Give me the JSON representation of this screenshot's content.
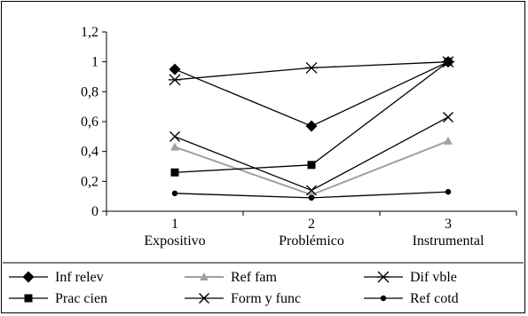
{
  "chart_data": {
    "type": "line",
    "title": "",
    "xlabel": "",
    "ylabel": "",
    "x": [
      "1",
      "2",
      "3"
    ],
    "categories": [
      "Expositivo",
      "Problémico",
      "Instrumental"
    ],
    "ylim": [
      0,
      1.2
    ],
    "yticks": [
      "0",
      "0,2",
      "0,4",
      "0,6",
      "0,8",
      "1",
      "1,2"
    ],
    "grid": false,
    "legend_position": "bottom",
    "series": [
      {
        "name": "Inf relev",
        "values": [
          0.95,
          0.57,
          1.0
        ],
        "marker": "diamond",
        "color": "#000000"
      },
      {
        "name": "Ref fam",
        "values": [
          0.43,
          0.11,
          0.47
        ],
        "marker": "triangle",
        "color": "#a0a0a0"
      },
      {
        "name": "Dif vble",
        "values": [
          0.88,
          0.96,
          1.0
        ],
        "marker": "asterisk",
        "color": "#000000"
      },
      {
        "name": "Prac cien",
        "values": [
          0.26,
          0.31,
          1.0
        ],
        "marker": "square",
        "color": "#000000"
      },
      {
        "name": "Form y func",
        "values": [
          0.5,
          0.14,
          0.63
        ],
        "marker": "x",
        "color": "#000000"
      },
      {
        "name": "Ref cotd",
        "values": [
          0.12,
          0.09,
          0.13
        ],
        "marker": "circle",
        "color": "#000000"
      }
    ]
  }
}
